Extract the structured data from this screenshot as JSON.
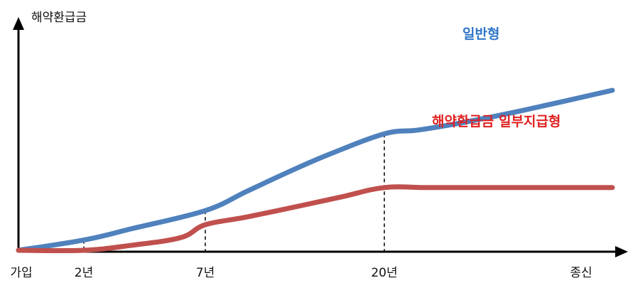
{
  "chart_data": {
    "type": "line",
    "title": "",
    "ylabel": "해약환급금",
    "xlabel": "",
    "x_ticks": [
      {
        "label": "가입",
        "x": 0
      },
      {
        "label": "2년",
        "x": 2
      },
      {
        "label": "7년",
        "x": 7
      },
      {
        "label": "20년",
        "x": 20
      },
      {
        "label": "종신",
        "x": 40
      }
    ],
    "guides": [
      2,
      7,
      20
    ],
    "series": [
      {
        "name": "일반형",
        "color": "#4f81bd",
        "points": [
          [
            0,
            0
          ],
          [
            2,
            8
          ],
          [
            4,
            17
          ],
          [
            7,
            31
          ],
          [
            10,
            46
          ],
          [
            13,
            61
          ],
          [
            16,
            75
          ],
          [
            20,
            91
          ],
          [
            23,
            94
          ],
          [
            27,
            100
          ],
          [
            32,
            109
          ],
          [
            40,
            125
          ]
        ]
      },
      {
        "name": "해약환급금 일부지급형",
        "color": "#c0504d",
        "points": [
          [
            0,
            0
          ],
          [
            2,
            0
          ],
          [
            4,
            4
          ],
          [
            6,
            10
          ],
          [
            7,
            20
          ],
          [
            10,
            26
          ],
          [
            14,
            35
          ],
          [
            17,
            42
          ],
          [
            20,
            49
          ],
          [
            24,
            49
          ],
          [
            30,
            49
          ],
          [
            40,
            49
          ]
        ]
      }
    ],
    "grid": false,
    "legend": "inline-labels"
  }
}
